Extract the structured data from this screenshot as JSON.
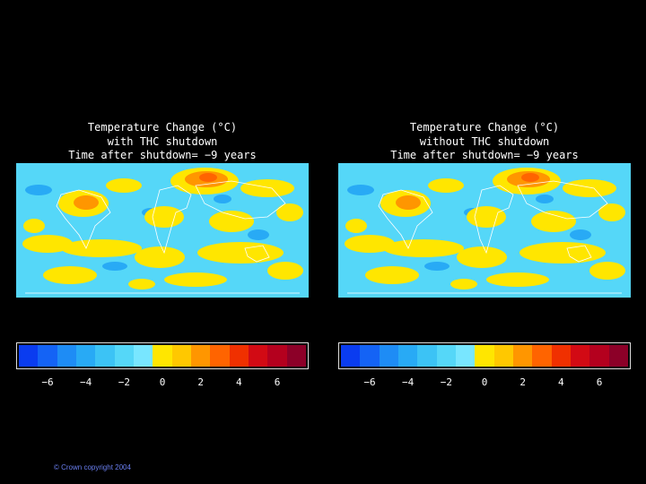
{
  "panels": [
    {
      "id": "with",
      "title_lines": [
        "Temperature Change (°C)",
        "with THC shutdown",
        "Time after shutdown= −9 years"
      ]
    },
    {
      "id": "without",
      "title_lines": [
        "Temperature Change (°C)",
        "without THC shutdown",
        "Time after shutdown= −9 years"
      ]
    }
  ],
  "legend": {
    "colors": [
      "#0a3cf0",
      "#1463f5",
      "#1e8cf5",
      "#28aaf5",
      "#3cc3f5",
      "#55d7f8",
      "#78e6ff",
      "#ffe600",
      "#ffc800",
      "#ff9600",
      "#ff6400",
      "#f03000",
      "#d20a14",
      "#b4001e",
      "#8c0028"
    ],
    "ticks": [
      "−6",
      "−4",
      "−2",
      "0",
      "2",
      "4",
      "6"
    ],
    "tick_values": [
      -6,
      -4,
      -2,
      0,
      2,
      4,
      6
    ],
    "range": [
      -7.5,
      7.5
    ]
  },
  "copyright": "© Crown copyright 2004"
}
